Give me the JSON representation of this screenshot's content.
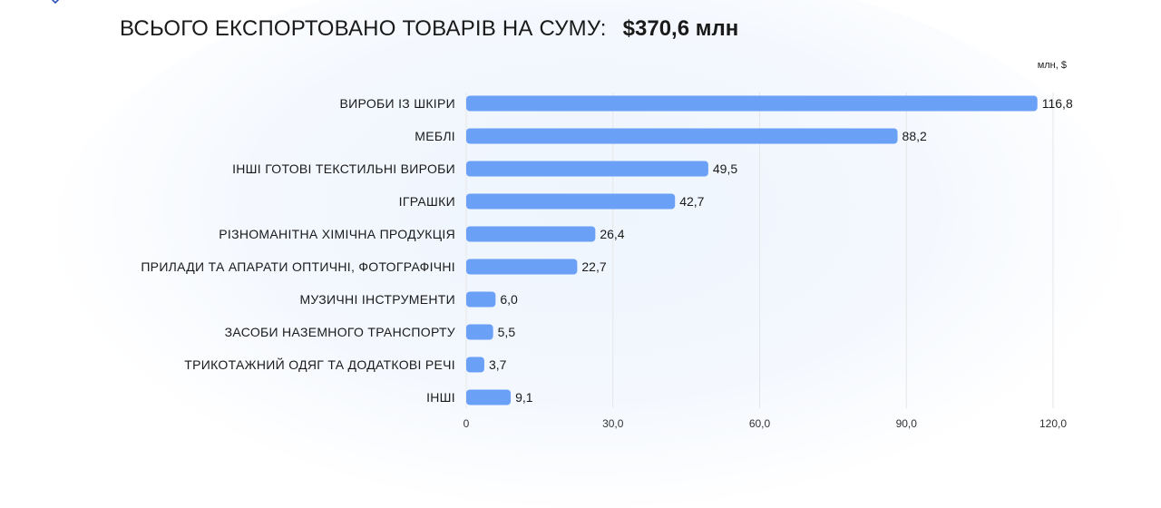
{
  "header": {
    "label": "ВСЬОГО ЕКСПОРТОВАНО ТОВАРІВ НА СУМУ:",
    "total": "$370,6 млн"
  },
  "colors": {
    "bar": "#6aa1f7",
    "grid": "#e6e6e6",
    "text": "#1a1a1a",
    "logo": "#2b4fb8"
  },
  "chart_data": {
    "type": "bar",
    "orientation": "horizontal",
    "unit_label": "млн, $",
    "categories": [
      "ВИРОБИ ІЗ ШКІРИ",
      "МЕБЛІ",
      "ІНШІ ГОТОВІ ТЕКСТИЛЬНІ ВИРОБИ",
      "ІГРАШКИ",
      "РІЗНОМАНІТНА ХІМІЧНА ПРОДУКЦІЯ",
      "ПРИЛАДИ ТА АПАРАТИ ОПТИЧНІ, ФОТОГРАФІЧНІ",
      "МУЗИЧНІ ІНСТРУМЕНТИ",
      "ЗАСОБИ НАЗЕМНОГО ТРАНСПОРТУ",
      "ТРИКОТАЖНИЙ ОДЯГ ТА ДОДАТКОВІ РЕЧІ",
      "ІНШІ"
    ],
    "values": [
      116.8,
      88.2,
      49.5,
      42.7,
      26.4,
      22.7,
      6.0,
      5.5,
      3.7,
      9.1
    ],
    "value_labels": [
      "116,8",
      "88,2",
      "49,5",
      "42,7",
      "26,4",
      "22,7",
      "6,0",
      "5,5",
      "3,7",
      "9,1"
    ],
    "xlim": [
      0,
      120
    ],
    "ticks": [
      0,
      30,
      60,
      90,
      120
    ],
    "tick_labels": [
      "0",
      "30,0",
      "60,0",
      "90,0",
      "120,0"
    ],
    "grid": true,
    "legend": "none"
  }
}
